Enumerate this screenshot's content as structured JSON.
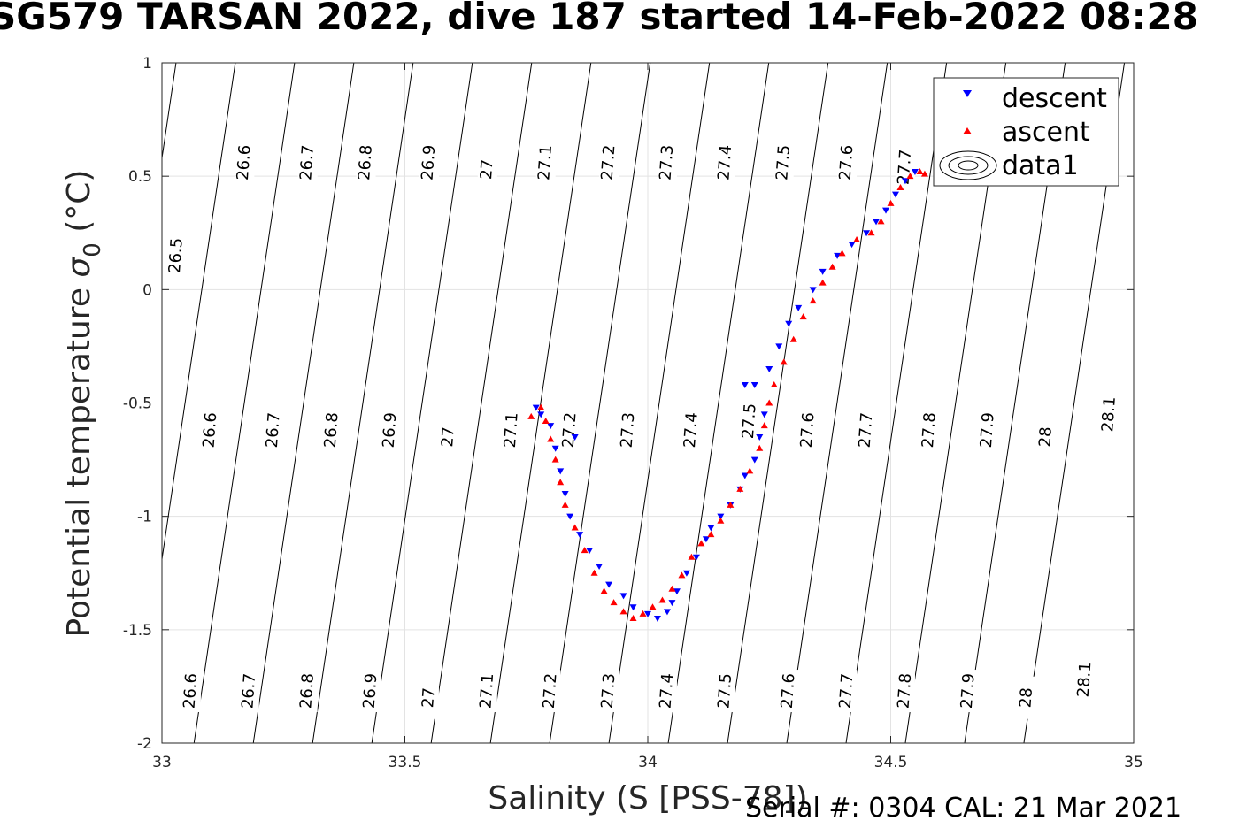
{
  "chart_data": {
    "type": "scatter",
    "title": "SG579 TARSAN 2022, dive 187 started 14-Feb-2022 08:28",
    "xlabel": "Salinity (S [PSS-78])",
    "ylabel_main": "Potential temperature ",
    "ylabel_sigma": "σ",
    "ylabel_sub": "0",
    "ylabel_unit": " (°C)",
    "xlim": [
      33,
      35
    ],
    "ylim": [
      -2,
      1
    ],
    "x_ticks": [
      33,
      33.5,
      34,
      34.5,
      35
    ],
    "x_tick_labels": [
      "33",
      "33.5",
      "34",
      "34.5",
      "35"
    ],
    "y_ticks": [
      -2,
      -1.5,
      -1,
      -0.5,
      0,
      0.5,
      1
    ],
    "y_tick_labels": [
      "-2",
      "-1.5",
      "-1",
      "-0.5",
      "0",
      "0.5",
      "1"
    ],
    "grid": true,
    "legend_position": "top-right",
    "legend": [
      "descent",
      "ascent",
      "data1"
    ],
    "density_contours": {
      "levels": [
        26.5,
        26.6,
        26.7,
        26.8,
        26.9,
        27,
        27.1,
        27.2,
        27.3,
        27.4,
        27.5,
        27.6,
        27.7,
        27.8,
        27.9,
        28,
        28.1
      ],
      "labels": [
        {
          "level": "26.5",
          "s": 33.03,
          "t": 0.15
        },
        {
          "level": "26.6",
          "s": 33.17,
          "t": 0.56
        },
        {
          "level": "26.7",
          "s": 33.3,
          "t": 0.56
        },
        {
          "level": "26.8",
          "s": 33.42,
          "t": 0.56
        },
        {
          "level": "26.9",
          "s": 33.55,
          "t": 0.56
        },
        {
          "level": "27",
          "s": 33.67,
          "t": 0.53
        },
        {
          "level": "27.1",
          "s": 33.79,
          "t": 0.56
        },
        {
          "level": "27.2",
          "s": 33.92,
          "t": 0.56
        },
        {
          "level": "27.3",
          "s": 34.04,
          "t": 0.56
        },
        {
          "level": "27.4",
          "s": 34.16,
          "t": 0.56
        },
        {
          "level": "27.5",
          "s": 34.28,
          "t": 0.56
        },
        {
          "level": "27.6",
          "s": 34.41,
          "t": 0.56
        },
        {
          "level": "27.7",
          "s": 34.53,
          "t": 0.54
        },
        {
          "level": "26.6",
          "s": 33.1,
          "t": -0.62
        },
        {
          "level": "26.7",
          "s": 33.23,
          "t": -0.62
        },
        {
          "level": "26.8",
          "s": 33.35,
          "t": -0.62
        },
        {
          "level": "26.9",
          "s": 33.47,
          "t": -0.62
        },
        {
          "level": "27",
          "s": 33.59,
          "t": -0.65
        },
        {
          "level": "27.1",
          "s": 33.72,
          "t": -0.62
        },
        {
          "level": "27.2",
          "s": 33.84,
          "t": -0.62
        },
        {
          "level": "27.3",
          "s": 33.96,
          "t": -0.62
        },
        {
          "level": "27.4",
          "s": 34.09,
          "t": -0.62
        },
        {
          "level": "27.5",
          "s": 34.21,
          "t": -0.58
        },
        {
          "level": "27.6",
          "s": 34.33,
          "t": -0.62
        },
        {
          "level": "27.7",
          "s": 34.45,
          "t": -0.62
        },
        {
          "level": "27.8",
          "s": 34.58,
          "t": -0.62
        },
        {
          "level": "27.9",
          "s": 34.7,
          "t": -0.62
        },
        {
          "level": "28",
          "s": 34.82,
          "t": -0.65
        },
        {
          "level": "28.1",
          "s": 34.95,
          "t": -0.55
        },
        {
          "level": "26.6",
          "s": 33.06,
          "t": -1.77
        },
        {
          "level": "26.7",
          "s": 33.18,
          "t": -1.77
        },
        {
          "level": "26.8",
          "s": 33.3,
          "t": -1.77
        },
        {
          "level": "26.9",
          "s": 33.43,
          "t": -1.77
        },
        {
          "level": "27",
          "s": 33.55,
          "t": -1.8
        },
        {
          "level": "27.1",
          "s": 33.67,
          "t": -1.77
        },
        {
          "level": "27.2",
          "s": 33.8,
          "t": -1.77
        },
        {
          "level": "27.3",
          "s": 33.92,
          "t": -1.77
        },
        {
          "level": "27.4",
          "s": 34.04,
          "t": -1.77
        },
        {
          "level": "27.5",
          "s": 34.16,
          "t": -1.77
        },
        {
          "level": "27.6",
          "s": 34.29,
          "t": -1.77
        },
        {
          "level": "27.7",
          "s": 34.41,
          "t": -1.77
        },
        {
          "level": "27.8",
          "s": 34.53,
          "t": -1.77
        },
        {
          "level": "27.9",
          "s": 34.66,
          "t": -1.77
        },
        {
          "level": "28",
          "s": 34.78,
          "t": -1.8
        },
        {
          "level": "28.1",
          "s": 34.9,
          "t": -1.72
        }
      ]
    },
    "series": [
      {
        "name": "descent",
        "marker": "triangle-down",
        "color": "#0000ff",
        "points": [
          [
            33.77,
            -0.52
          ],
          [
            33.78,
            -0.55
          ],
          [
            33.8,
            -0.6
          ],
          [
            33.81,
            -0.7
          ],
          [
            33.82,
            -0.8
          ],
          [
            33.83,
            -0.9
          ],
          [
            33.85,
            -0.65
          ],
          [
            33.84,
            -1.0
          ],
          [
            33.86,
            -1.08
          ],
          [
            33.88,
            -1.15
          ],
          [
            33.9,
            -1.22
          ],
          [
            33.92,
            -1.3
          ],
          [
            33.95,
            -1.35
          ],
          [
            33.97,
            -1.4
          ],
          [
            34.0,
            -1.43
          ],
          [
            34.02,
            -1.45
          ],
          [
            34.04,
            -1.42
          ],
          [
            34.05,
            -1.38
          ],
          [
            34.06,
            -1.33
          ],
          [
            34.08,
            -1.25
          ],
          [
            34.1,
            -1.18
          ],
          [
            34.12,
            -1.1
          ],
          [
            34.13,
            -1.05
          ],
          [
            34.15,
            -1.0
          ],
          [
            34.17,
            -0.95
          ],
          [
            34.19,
            -0.88
          ],
          [
            34.2,
            -0.82
          ],
          [
            34.22,
            -0.75
          ],
          [
            34.23,
            -0.65
          ],
          [
            34.24,
            -0.55
          ],
          [
            34.2,
            -0.42
          ],
          [
            34.22,
            -0.42
          ],
          [
            34.25,
            -0.35
          ],
          [
            34.27,
            -0.25
          ],
          [
            34.29,
            -0.15
          ],
          [
            34.31,
            -0.08
          ],
          [
            34.34,
            0.0
          ],
          [
            34.36,
            0.08
          ],
          [
            34.39,
            0.15
          ],
          [
            34.42,
            0.2
          ],
          [
            34.45,
            0.25
          ],
          [
            34.47,
            0.3
          ],
          [
            34.49,
            0.35
          ],
          [
            34.51,
            0.42
          ],
          [
            34.53,
            0.48
          ],
          [
            34.55,
            0.52
          ]
        ]
      },
      {
        "name": "ascent",
        "marker": "triangle-up",
        "color": "#ff0000",
        "points": [
          [
            33.76,
            -0.56
          ],
          [
            33.78,
            -0.52
          ],
          [
            33.79,
            -0.58
          ],
          [
            33.8,
            -0.66
          ],
          [
            33.81,
            -0.75
          ],
          [
            33.82,
            -0.85
          ],
          [
            33.83,
            -0.95
          ],
          [
            33.85,
            -1.05
          ],
          [
            33.87,
            -1.15
          ],
          [
            33.89,
            -1.25
          ],
          [
            33.91,
            -1.33
          ],
          [
            33.93,
            -1.38
          ],
          [
            33.95,
            -1.42
          ],
          [
            33.97,
            -1.45
          ],
          [
            33.99,
            -1.43
          ],
          [
            34.01,
            -1.4
          ],
          [
            34.03,
            -1.37
          ],
          [
            34.05,
            -1.32
          ],
          [
            34.07,
            -1.26
          ],
          [
            34.09,
            -1.18
          ],
          [
            34.11,
            -1.12
          ],
          [
            34.13,
            -1.08
          ],
          [
            34.15,
            -1.02
          ],
          [
            34.17,
            -0.95
          ],
          [
            34.19,
            -0.88
          ],
          [
            34.21,
            -0.8
          ],
          [
            34.23,
            -0.7
          ],
          [
            34.24,
            -0.6
          ],
          [
            34.25,
            -0.5
          ],
          [
            34.26,
            -0.42
          ],
          [
            34.28,
            -0.32
          ],
          [
            34.3,
            -0.22
          ],
          [
            34.32,
            -0.12
          ],
          [
            34.34,
            -0.05
          ],
          [
            34.36,
            0.03
          ],
          [
            34.38,
            0.1
          ],
          [
            34.4,
            0.16
          ],
          [
            34.43,
            0.22
          ],
          [
            34.46,
            0.25
          ],
          [
            34.48,
            0.3
          ],
          [
            34.5,
            0.38
          ],
          [
            34.52,
            0.45
          ],
          [
            34.54,
            0.5
          ],
          [
            34.56,
            0.52
          ],
          [
            34.57,
            0.51
          ]
        ]
      }
    ]
  },
  "footer": {
    "serial_text": "Serial #: 0304  CAL: 21 Mar 2021"
  }
}
